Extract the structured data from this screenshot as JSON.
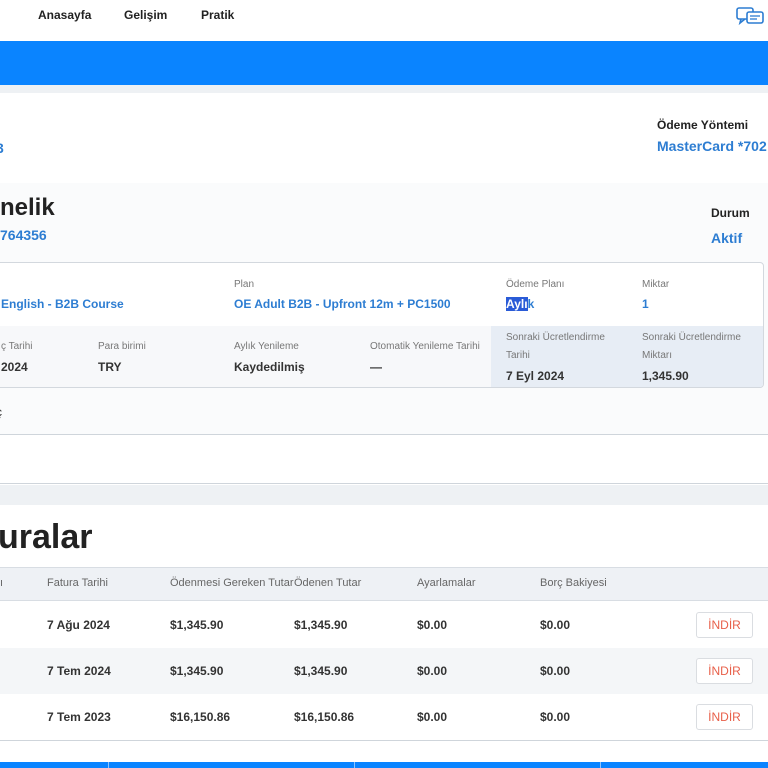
{
  "nav": {
    "home": "Anasayfa",
    "progress": "Gelişim",
    "practice": "Pratik",
    "chat_icon": "chat-bubbles-icon"
  },
  "payment": {
    "label": "Ödeme Yöntemi",
    "value": "MasterCard *702"
  },
  "account_fragment": "3",
  "membership": {
    "title": "nelik",
    "id": "764356",
    "status_label": "Durum",
    "status_value": "Aktif",
    "course": "English - B2B Course",
    "plan_label": "Plan",
    "plan_value": "OE Adult B2B - Upfront 12m + PC1500",
    "payment_plan_label": "Ödeme Planı",
    "payment_plan_value_selected": "Aylı",
    "payment_plan_value_rest": "k",
    "amount_label": "Miktar",
    "amount_value": "1",
    "start_label": "ç Tarihi",
    "start_value": "2024",
    "currency_label": "Para birimi",
    "currency_value": "TRY",
    "monthly_label": "Aylık Yenileme",
    "monthly_value": "Kaydedilmiş",
    "auto_label": "Otomatik Yenileme Tarihi",
    "auto_value": "—",
    "next_date_label": "Sonraki Ücretlendirme Tarihi",
    "next_date_value": "7 Eyl 2024",
    "next_amount_label": "Sonraki Ücretlendirme Miktarı",
    "next_amount_value": "1,345.90",
    "below_card": "ç"
  },
  "invoices": {
    "title": "uralar",
    "headers": {
      "col0": "ı",
      "date": "Fatura Tarihi",
      "due": "Ödenmesi Gereken Tutar",
      "paid": "Ödenen Tutar",
      "adjust": "Ayarlamalar",
      "balance": "Borç Bakiyesi"
    },
    "download_label": "İNDİR",
    "rows": [
      {
        "date": "7 Ağu 2024",
        "due": "$1,345.90",
        "paid": "$1,345.90",
        "adjust": "$0.00",
        "balance": "$0.00"
      },
      {
        "date": "7 Tem 2024",
        "due": "$1,345.90",
        "paid": "$1,345.90",
        "adjust": "$0.00",
        "balance": "$0.00"
      },
      {
        "date": "7 Tem 2023",
        "due": "$16,150.86",
        "paid": "$16,150.86",
        "adjust": "$0.00",
        "balance": "$0.00"
      }
    ]
  },
  "colors": {
    "primary_blue": "#0a84ff",
    "link_blue": "#2d7dd2",
    "download_red": "#e8604a"
  }
}
